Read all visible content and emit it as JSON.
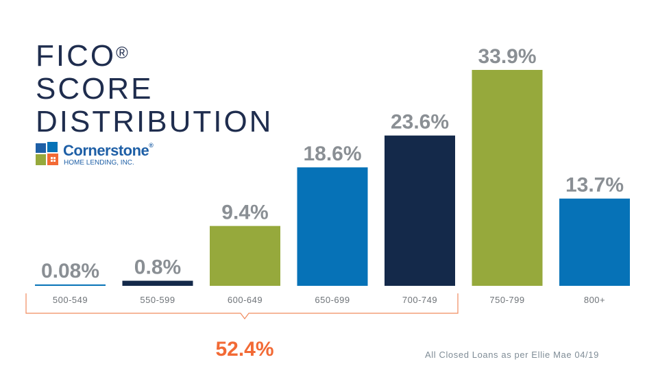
{
  "title": {
    "line1": "FICO",
    "registered": "®",
    "line2": "SCORE",
    "line3": "DISTRIBUTION"
  },
  "logo": {
    "name": "Cornerstone",
    "registered": "®",
    "sub": "HOME LENDING, INC."
  },
  "footer": "All Closed Loans as per Ellie Mae 04/19",
  "bracket_total": "52.4%",
  "colors": {
    "blue": "#0672b7",
    "navy": "#14294a",
    "green": "#96a93c",
    "label_gray": "#8a8f94",
    "tick_gray": "#6e7378",
    "bracket": "#f08a5d",
    "total": "#f26a35"
  },
  "chart_data": {
    "type": "bar",
    "categories": [
      "500-549",
      "550-599",
      "600-649",
      "650-699",
      "700-749",
      "750-799",
      "800+"
    ],
    "values": [
      0.08,
      0.8,
      9.4,
      18.6,
      23.6,
      33.9,
      13.7
    ],
    "data_labels": [
      "0.08%",
      "0.8%",
      "9.4%",
      "18.6%",
      "23.6%",
      "33.9%",
      "13.7%"
    ],
    "bar_colors": [
      "#0672b7",
      "#14294a",
      "#96a93c",
      "#0672b7",
      "#14294a",
      "#96a93c",
      "#0672b7"
    ],
    "title": "FICO® SCORE DISTRIBUTION",
    "xlabel": "",
    "ylabel": "",
    "grid": false,
    "annotation": {
      "text": "52.4%",
      "spans_categories": [
        "500-549",
        "550-599",
        "600-649",
        "650-699",
        "700-749"
      ]
    }
  }
}
